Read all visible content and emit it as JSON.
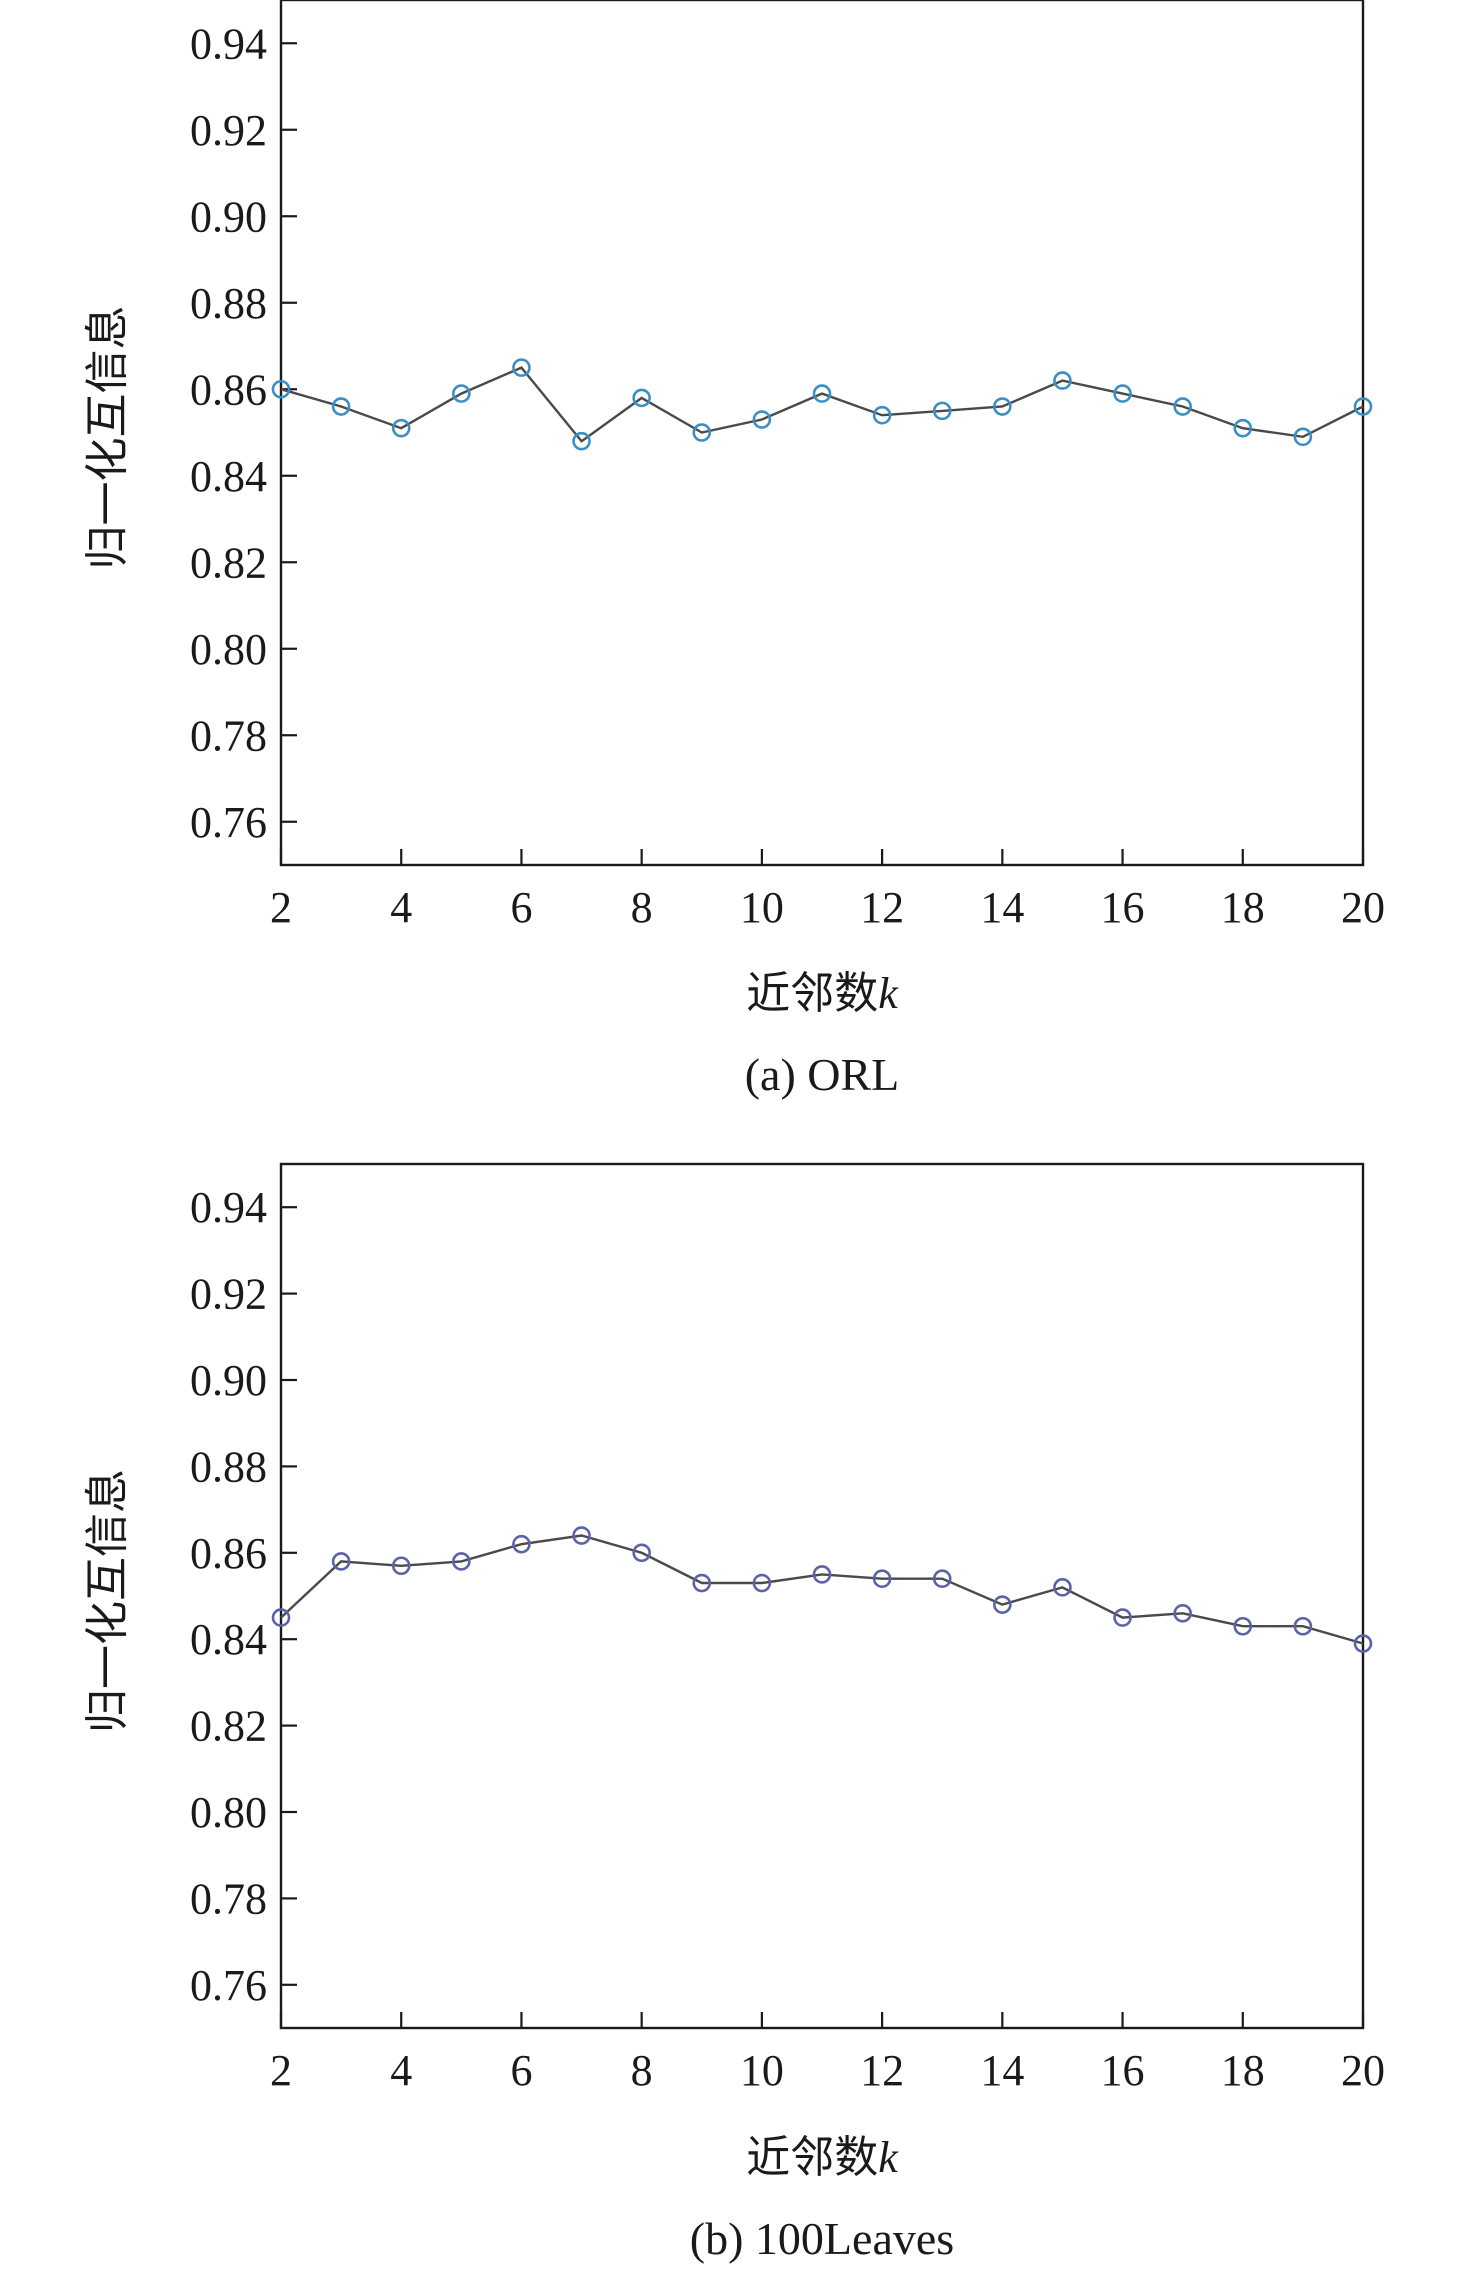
{
  "chart_data": [
    {
      "type": "line",
      "caption": "(a) ORL",
      "xlabel": "近邻数",
      "xlabel_var": "k",
      "ylabel": "归一化互信息",
      "xlim": [
        2,
        20
      ],
      "ylim": [
        0.75,
        0.95
      ],
      "x_ticks": [
        2,
        4,
        6,
        8,
        10,
        12,
        14,
        16,
        18,
        20
      ],
      "y_ticks": [
        "0.76",
        "0.78",
        "0.80",
        "0.82",
        "0.84",
        "0.86",
        "0.88",
        "0.90",
        "0.92",
        "0.94"
      ],
      "grid": false,
      "line_color": "#4a4a4a",
      "marker_color": "#3a8fc4",
      "series": [
        {
          "x": [
            2,
            3,
            4,
            5,
            6,
            7,
            8,
            9,
            10,
            11,
            12,
            13,
            14,
            15,
            16,
            17,
            18,
            19,
            20
          ],
          "values": [
            0.86,
            0.856,
            0.851,
            0.859,
            0.865,
            0.848,
            0.858,
            0.85,
            0.853,
            0.859,
            0.854,
            0.855,
            0.856,
            0.862,
            0.859,
            0.856,
            0.851,
            0.849,
            0.856
          ]
        }
      ]
    },
    {
      "type": "line",
      "caption": "(b) 100Leaves",
      "xlabel": "近邻数",
      "xlabel_var": "k",
      "ylabel": "归一化互信息",
      "xlim": [
        2,
        20
      ],
      "ylim": [
        0.75,
        0.95
      ],
      "x_ticks": [
        2,
        4,
        6,
        8,
        10,
        12,
        14,
        16,
        18,
        20
      ],
      "y_ticks": [
        "0.76",
        "0.78",
        "0.80",
        "0.82",
        "0.84",
        "0.86",
        "0.88",
        "0.90",
        "0.92",
        "0.94"
      ],
      "grid": false,
      "line_color": "#4a4a4a",
      "marker_color": "#5b63a8",
      "series": [
        {
          "x": [
            2,
            3,
            4,
            5,
            6,
            7,
            8,
            9,
            10,
            11,
            12,
            13,
            14,
            15,
            16,
            17,
            18,
            19,
            20
          ],
          "values": [
            0.845,
            0.858,
            0.857,
            0.858,
            0.862,
            0.864,
            0.86,
            0.853,
            0.853,
            0.855,
            0.854,
            0.854,
            0.848,
            0.852,
            0.845,
            0.846,
            0.843,
            0.843,
            0.839
          ]
        }
      ]
    }
  ]
}
